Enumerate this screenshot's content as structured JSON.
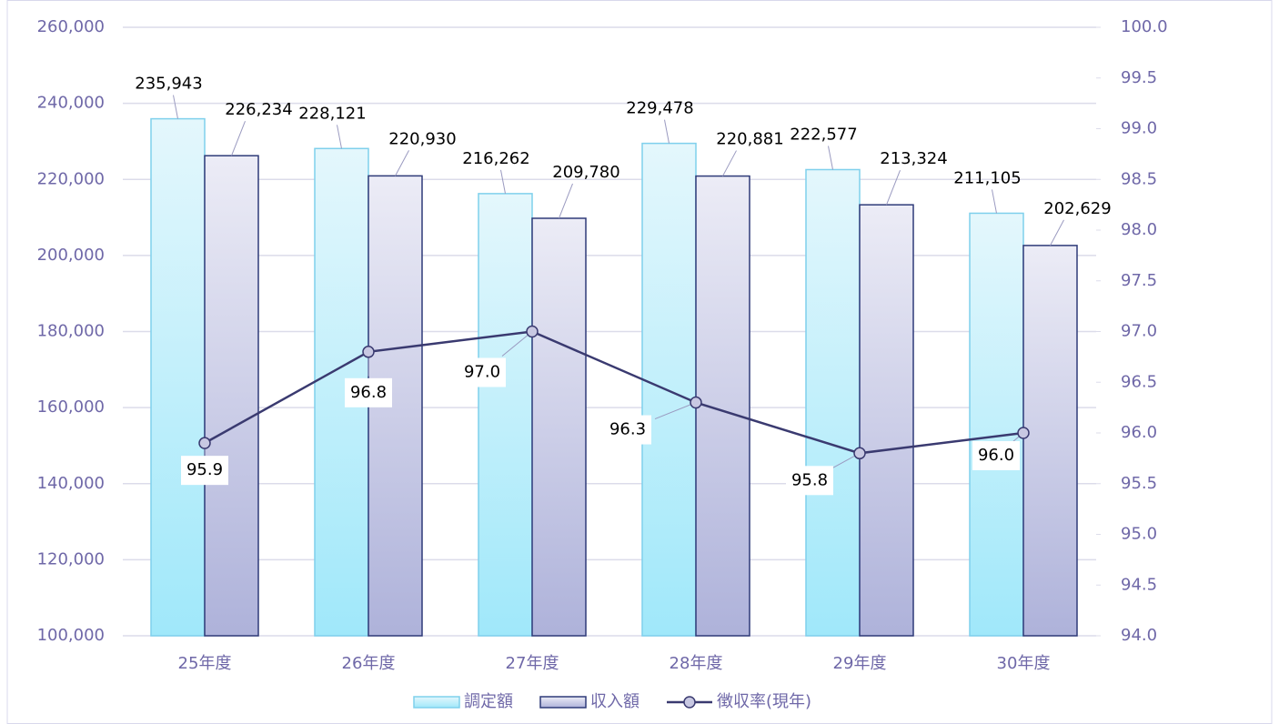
{
  "chart_data": {
    "type": "bar",
    "categories": [
      "25年度",
      "26年度",
      "27年度",
      "28年度",
      "29年度",
      "30年度"
    ],
    "series": [
      {
        "name": "調定額",
        "type": "bar",
        "color": "#a8e8f8",
        "values": [
          235943,
          228121,
          216262,
          229478,
          222577,
          211105
        ],
        "value_labels": [
          "235,943",
          "228,121",
          "216,262",
          "229,478",
          "222,577",
          "211,105"
        ]
      },
      {
        "name": "収入額",
        "type": "bar",
        "color": "#b4b8dc",
        "values": [
          226234,
          220930,
          209780,
          220881,
          213324,
          202629
        ],
        "value_labels": [
          "226,234",
          "220,930",
          "209,780",
          "220,881",
          "213,324",
          "202,629"
        ]
      },
      {
        "name": "徴収率(現年)",
        "type": "line",
        "axis": "y2",
        "color": "#3a3a70",
        "values": [
          95.9,
          96.8,
          97.0,
          96.3,
          95.8,
          96.0
        ],
        "value_labels": [
          "95.9",
          "96.8",
          "97.0",
          "96.3",
          "95.8",
          "96.0"
        ]
      }
    ],
    "ylim": [
      100000,
      260000
    ],
    "yticks": [
      {
        "value": 100000,
        "label": "100,000"
      },
      {
        "value": 120000,
        "label": "120,000"
      },
      {
        "value": 140000,
        "label": "140,000"
      },
      {
        "value": 160000,
        "label": "160,000"
      },
      {
        "value": 180000,
        "label": "180,000"
      },
      {
        "value": 200000,
        "label": "200,000"
      },
      {
        "value": 220000,
        "label": "220,000"
      },
      {
        "value": 240000,
        "label": "240,000"
      },
      {
        "value": 260000,
        "label": "260,000"
      }
    ],
    "y2lim": [
      94,
      100
    ],
    "y2ticks": [
      {
        "value": 94,
        "label": "94.0"
      },
      94.5,
      {
        "value": 95,
        "label": "95.0"
      },
      95.5,
      {
        "value": 96,
        "label": "96.0"
      },
      96.5,
      {
        "value": 97,
        "label": "97.0"
      },
      97.5,
      {
        "value": 98,
        "label": "98.0"
      },
      98.5,
      {
        "value": 99,
        "label": "99.0"
      },
      99.5,
      {
        "value": 100,
        "label": "100.0"
      }
    ],
    "grid": true,
    "legend": "bottom"
  }
}
